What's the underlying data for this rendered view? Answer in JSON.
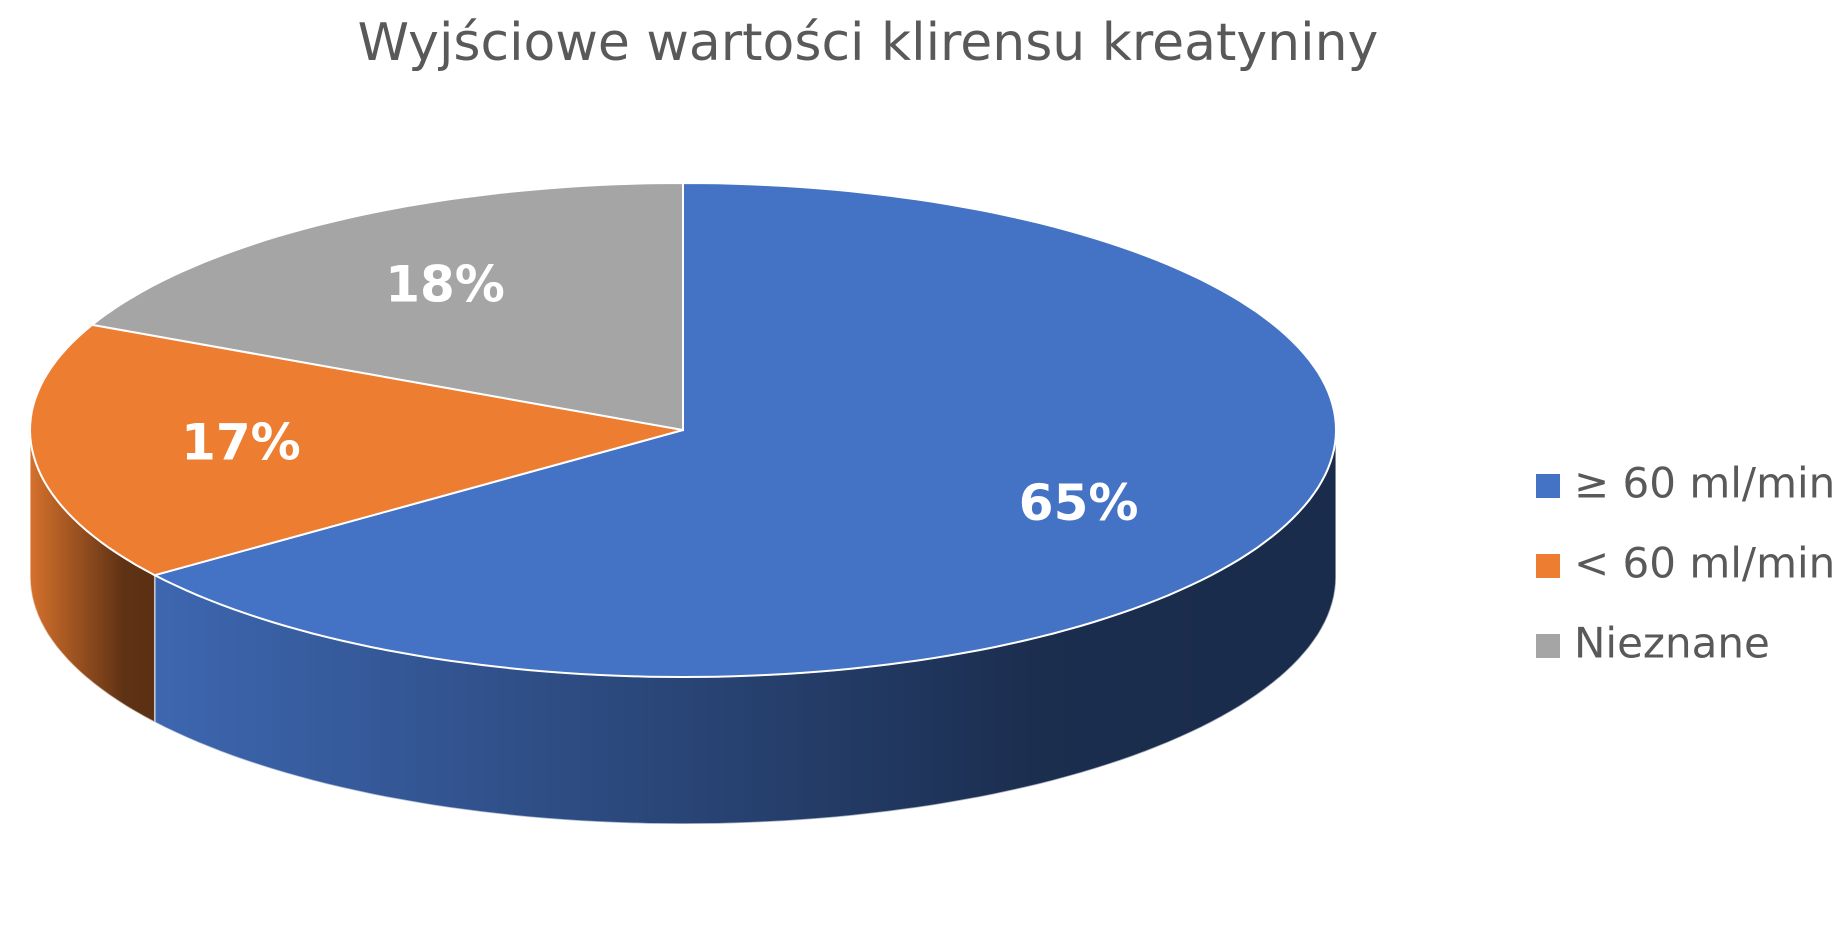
{
  "chart_data": {
    "type": "pie3d",
    "title": "Wyjściowe wartości klirensu kreatyniny",
    "categories": [
      "≥ 60 ml/min",
      "< 60 ml/min",
      "Nieznane"
    ],
    "values": [
      65,
      17,
      18
    ],
    "value_labels": [
      "65%",
      "17%",
      "18%"
    ],
    "colors": [
      "#4472c4",
      "#ed7d31",
      "#a5a5a5"
    ],
    "legend": "right"
  }
}
